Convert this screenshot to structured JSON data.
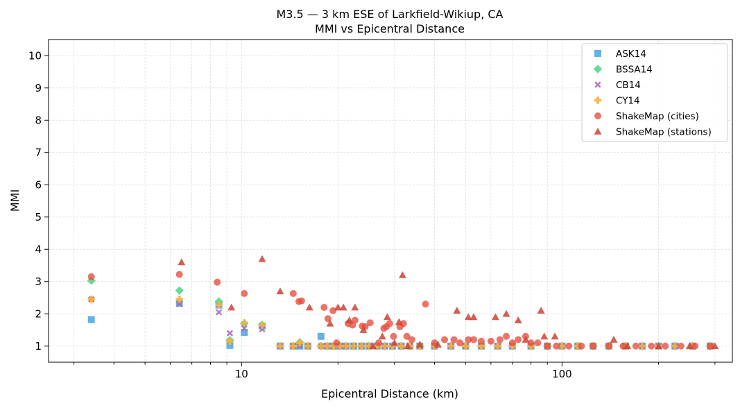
{
  "chart_data": {
    "type": "scatter",
    "title": "M3.5 — 3 km ESE of Larkfield-Wikiup, CA",
    "subtitle": "MMI vs Epicentral Distance",
    "xlabel": "Epicentral Distance (km)",
    "ylabel": "MMI",
    "xscale": "log",
    "xlim": [
      2.5,
      340
    ],
    "ylim": [
      0.5,
      10.5
    ],
    "xticks": [
      10,
      100
    ],
    "xtick_labels": [
      "10",
      "100"
    ],
    "yticks": [
      1,
      2,
      3,
      4,
      5,
      6,
      7,
      8,
      9,
      10
    ],
    "ytick_labels": [
      "1",
      "2",
      "3",
      "4",
      "5",
      "6",
      "7",
      "8",
      "9",
      "10"
    ],
    "grid": true,
    "legend_position": "top-right",
    "series": [
      {
        "name": "ASK14",
        "marker": "square",
        "color": "#5DADE2",
        "x": [
          3.4,
          6.4,
          8.5,
          9.2,
          10.2,
          11.6,
          13.2,
          14.5,
          15.2,
          16.1,
          17.7,
          18.5,
          19.4,
          20.3,
          21.2,
          22.4,
          23.7,
          25.0,
          26.5,
          28.0,
          29.6,
          31.5,
          33.5,
          36.0,
          40.0,
          45.0,
          50.0,
          56.0,
          63.0,
          70.0,
          80.0,
          90.0,
          100.0,
          112.0,
          125.0,
          140.0,
          158.0,
          178.0,
          200.0,
          225.0,
          255.0,
          290.0
        ],
        "y": [
          1.82,
          2.33,
          2.27,
          1.02,
          1.42,
          1.62,
          1.0,
          1.0,
          1.0,
          1.0,
          1.3,
          1.0,
          1.0,
          1.0,
          1.0,
          1.0,
          1.0,
          1.0,
          1.0,
          1.0,
          1.0,
          1.0,
          1.0,
          1.0,
          1.0,
          1.0,
          1.0,
          1.0,
          1.0,
          1.0,
          1.0,
          1.0,
          1.0,
          1.0,
          1.0,
          1.0,
          1.0,
          1.0,
          1.0,
          1.0,
          1.0,
          1.0
        ]
      },
      {
        "name": "BSSA14",
        "marker": "diamond",
        "color": "#58D68D",
        "x": [
          3.4,
          6.4,
          8.5,
          9.2,
          10.2,
          11.6,
          13.2,
          14.5,
          15.2,
          16.1,
          17.7,
          18.5,
          19.4,
          20.3,
          21.2,
          22.4,
          23.7,
          25.0,
          26.5,
          28.0,
          29.6,
          31.5,
          33.5,
          36.0,
          40.0,
          45.0,
          50.0,
          56.0,
          63.0,
          70.0,
          80.0,
          90.0,
          100.0,
          112.0,
          125.0,
          140.0,
          158.0,
          178.0,
          200.0,
          225.0,
          255.0,
          290.0
        ],
        "y": [
          3.03,
          2.72,
          2.38,
          1.18,
          1.7,
          1.66,
          1.0,
          1.0,
          1.12,
          1.0,
          1.0,
          1.0,
          1.0,
          1.0,
          1.0,
          1.0,
          1.0,
          1.0,
          1.0,
          1.0,
          1.0,
          1.0,
          1.0,
          1.0,
          1.0,
          1.0,
          1.0,
          1.0,
          1.0,
          1.0,
          1.0,
          1.0,
          1.0,
          1.0,
          1.0,
          1.0,
          1.0,
          1.0,
          1.0,
          1.0,
          1.0,
          1.0
        ]
      },
      {
        "name": "CB14",
        "marker": "x",
        "color": "#A569BD",
        "x": [
          3.4,
          6.4,
          8.5,
          9.2,
          10.2,
          11.6,
          13.2,
          14.5,
          15.2,
          16.1,
          17.7,
          18.5,
          19.4,
          20.3,
          21.2,
          22.4,
          23.7,
          25.0,
          26.5,
          28.0,
          29.6,
          31.5,
          33.5,
          36.0,
          40.0,
          45.0,
          50.0,
          56.0,
          63.0,
          70.0,
          80.0,
          90.0,
          100.0,
          112.0,
          125.0,
          140.0,
          158.0,
          178.0,
          200.0,
          225.0,
          255.0,
          290.0
        ],
        "y": [
          2.45,
          2.3,
          2.05,
          1.4,
          1.55,
          1.52,
          1.0,
          1.0,
          1.0,
          1.0,
          1.0,
          1.0,
          1.0,
          1.0,
          1.0,
          1.0,
          1.0,
          1.0,
          1.0,
          1.0,
          1.0,
          1.0,
          1.0,
          1.0,
          1.0,
          1.0,
          1.0,
          1.0,
          1.0,
          1.0,
          1.0,
          1.0,
          1.0,
          1.0,
          1.0,
          1.0,
          1.0,
          1.0,
          1.0,
          1.0,
          1.0,
          1.0
        ]
      },
      {
        "name": "CY14",
        "marker": "plus",
        "color": "#F5B041",
        "x": [
          3.4,
          6.4,
          8.5,
          9.2,
          10.2,
          11.6,
          13.2,
          14.5,
          15.2,
          16.1,
          17.7,
          18.5,
          19.4,
          20.3,
          21.2,
          22.4,
          23.7,
          25.0,
          26.5,
          28.0,
          29.6,
          31.5,
          33.5,
          36.0,
          40.0,
          45.0,
          50.0,
          56.0,
          63.0,
          70.0,
          80.0,
          90.0,
          100.0,
          112.0,
          125.0,
          140.0,
          158.0,
          178.0,
          200.0,
          225.0,
          255.0,
          290.0
        ],
        "y": [
          2.45,
          2.45,
          2.28,
          1.15,
          1.72,
          1.65,
          1.0,
          1.0,
          1.1,
          1.0,
          1.0,
          1.0,
          1.0,
          1.0,
          1.0,
          1.0,
          1.0,
          1.0,
          1.0,
          1.0,
          1.0,
          1.0,
          1.0,
          1.0,
          1.0,
          1.0,
          1.0,
          1.0,
          1.0,
          1.0,
          1.0,
          1.0,
          1.0,
          1.0,
          1.0,
          1.0,
          1.0,
          1.0,
          1.0,
          1.0,
          1.0,
          1.0
        ]
      },
      {
        "name": "ShakeMap (cities)",
        "marker": "circle",
        "color": "#E74C3C",
        "x": [
          3.4,
          6.4,
          8.4,
          10.2,
          14.5,
          15.1,
          15.4,
          18.1,
          18.6,
          19.3,
          19.8,
          21.5,
          22.2,
          22.6,
          23.8,
          24.3,
          25.2,
          26.8,
          27.8,
          28.3,
          29.0,
          29.8,
          31.2,
          32.0,
          32.8,
          34.0,
          37.5,
          40.0,
          43.0,
          46.0,
          48.0,
          51.0,
          53.0,
          56.0,
          60.0,
          64.0,
          67.0,
          70.0,
          73.0,
          77.0,
          80.0,
          84.0,
          90.0,
          96.0,
          105.0,
          115.0,
          125.0,
          140.0,
          155.0,
          170.0,
          190.0,
          210.0,
          235.0,
          260.0,
          290.0
        ],
        "y": [
          3.15,
          3.22,
          2.98,
          2.63,
          2.63,
          2.38,
          2.4,
          2.2,
          1.85,
          2.1,
          1.1,
          1.7,
          1.65,
          1.8,
          1.62,
          1.6,
          1.72,
          1.1,
          1.55,
          1.6,
          1.7,
          1.3,
          1.6,
          1.7,
          1.3,
          1.2,
          2.3,
          1.1,
          1.2,
          1.2,
          1.1,
          1.2,
          1.2,
          1.15,
          1.15,
          1.2,
          1.3,
          1.1,
          1.2,
          1.3,
          1.1,
          1.1,
          1.0,
          1.0,
          1.0,
          1.0,
          1.0,
          1.0,
          1.0,
          1.0,
          1.0,
          1.0,
          1.0,
          1.0,
          1.0
        ]
      },
      {
        "name": "ShakeMap (stations)",
        "marker": "triangle",
        "color": "#CB4335",
        "x": [
          6.5,
          9.3,
          11.6,
          13.2,
          16.3,
          18.9,
          20.0,
          20.8,
          21.7,
          22.6,
          24.0,
          25.7,
          27.5,
          28.5,
          30.0,
          31.0,
          31.8,
          33.0,
          36.0,
          41.0,
          47.0,
          51.0,
          53.0,
          62.0,
          67.0,
          73.0,
          77.0,
          86.0,
          88.0,
          95.0,
          145.0,
          160.0,
          200.0,
          250.0,
          300.0
        ],
        "y": [
          3.6,
          2.2,
          3.7,
          2.7,
          2.2,
          1.7,
          2.2,
          2.2,
          1.8,
          2.2,
          1.5,
          1.0,
          1.3,
          1.9,
          1.1,
          1.75,
          3.2,
          1.0,
          1.05,
          1.05,
          2.1,
          1.9,
          1.9,
          1.9,
          2.0,
          1.8,
          1.2,
          2.1,
          1.3,
          1.3,
          1.2,
          1.0,
          1.0,
          1.0,
          1.0
        ]
      }
    ]
  }
}
